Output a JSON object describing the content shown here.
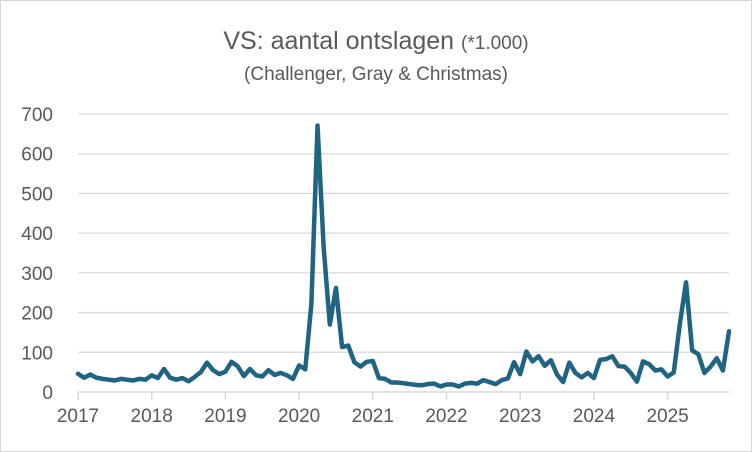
{
  "chart_data": {
    "type": "line",
    "title": "VS: aantal ontslagen",
    "title_suffix": "(*1.000)",
    "subtitle": "(Challenger, Gray & Christmas)",
    "xlabel": "",
    "ylabel": "",
    "ylim": [
      0,
      700
    ],
    "yticks": [
      0,
      100,
      200,
      300,
      400,
      500,
      600,
      700
    ],
    "xticks": [
      "2017",
      "2018",
      "2019",
      "2020",
      "2021",
      "2022",
      "2023",
      "2024",
      "2025"
    ],
    "x_start": "2017-01",
    "x_frequency": "monthly",
    "grid": true,
    "line_color": "#1f6482",
    "series": [
      {
        "name": "Ontslagen",
        "values": [
          46,
          36,
          44,
          36,
          33,
          31,
          29,
          33,
          31,
          29,
          33,
          31,
          42,
          35,
          58,
          36,
          31,
          35,
          27,
          38,
          50,
          74,
          55,
          45,
          51,
          76,
          65,
          40,
          58,
          42,
          39,
          55,
          43,
          48,
          42,
          33,
          67,
          57,
          222,
          671,
          364,
          170,
          262,
          113,
          117,
          75,
          64,
          76,
          78,
          35,
          33,
          24,
          24,
          22,
          20,
          18,
          17,
          20,
          21,
          14,
          19,
          19,
          14,
          21,
          23,
          21,
          30,
          25,
          20,
          30,
          34,
          75,
          45,
          102,
          77,
          90,
          66,
          80,
          44,
          25,
          74,
          48,
          37,
          48,
          35,
          81,
          83,
          90,
          65,
          64,
          48,
          26,
          77,
          70,
          54,
          57,
          39,
          49,
          172,
          276,
          105,
          95,
          48,
          64,
          85,
          54,
          153
        ]
      }
    ]
  }
}
